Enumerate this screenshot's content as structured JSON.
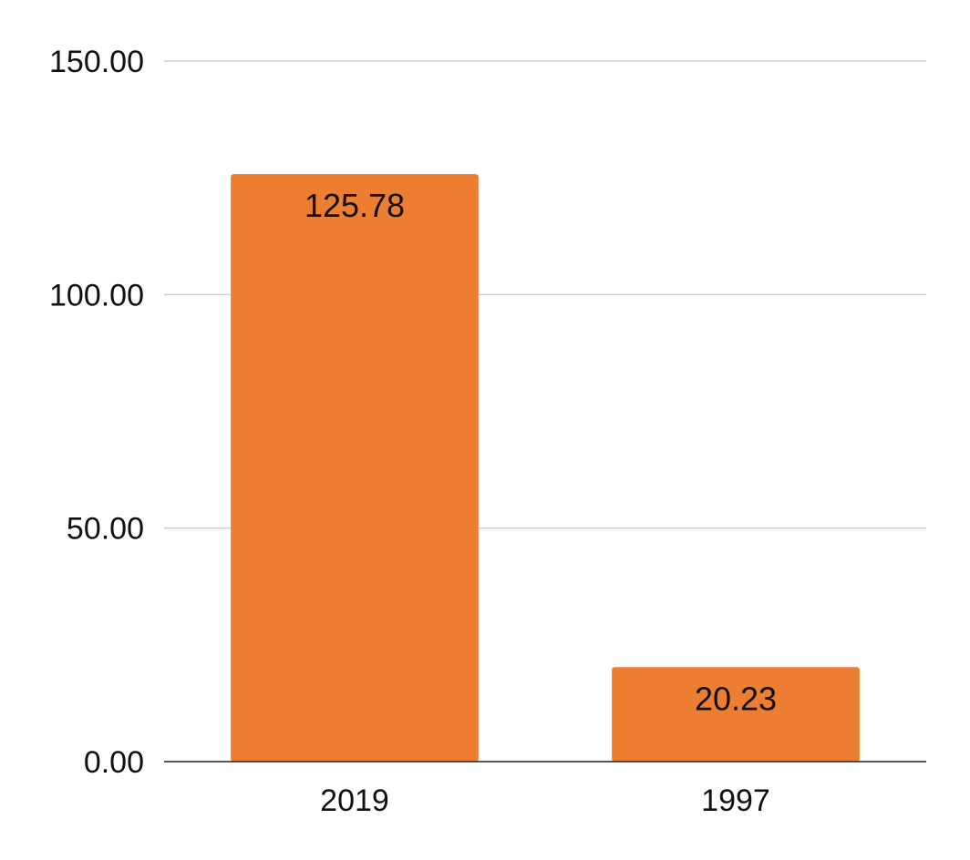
{
  "chart_data": {
    "type": "bar",
    "categories": [
      "2019",
      "1997"
    ],
    "values": [
      125.78,
      20.23
    ],
    "data_labels": [
      "125.78",
      "20.23"
    ],
    "title": "",
    "xlabel": "",
    "ylabel": "",
    "ylim": [
      0,
      150
    ],
    "y_ticks": [
      0,
      50,
      100,
      150
    ],
    "y_tick_labels": [
      "0.00",
      "50.00",
      "100.00",
      "150.00"
    ],
    "grid": true,
    "legend": "none",
    "colors": {
      "bar": "#ed7d31",
      "grid": "#cfcfcf",
      "axis": "#222222",
      "text": "#111111"
    }
  }
}
